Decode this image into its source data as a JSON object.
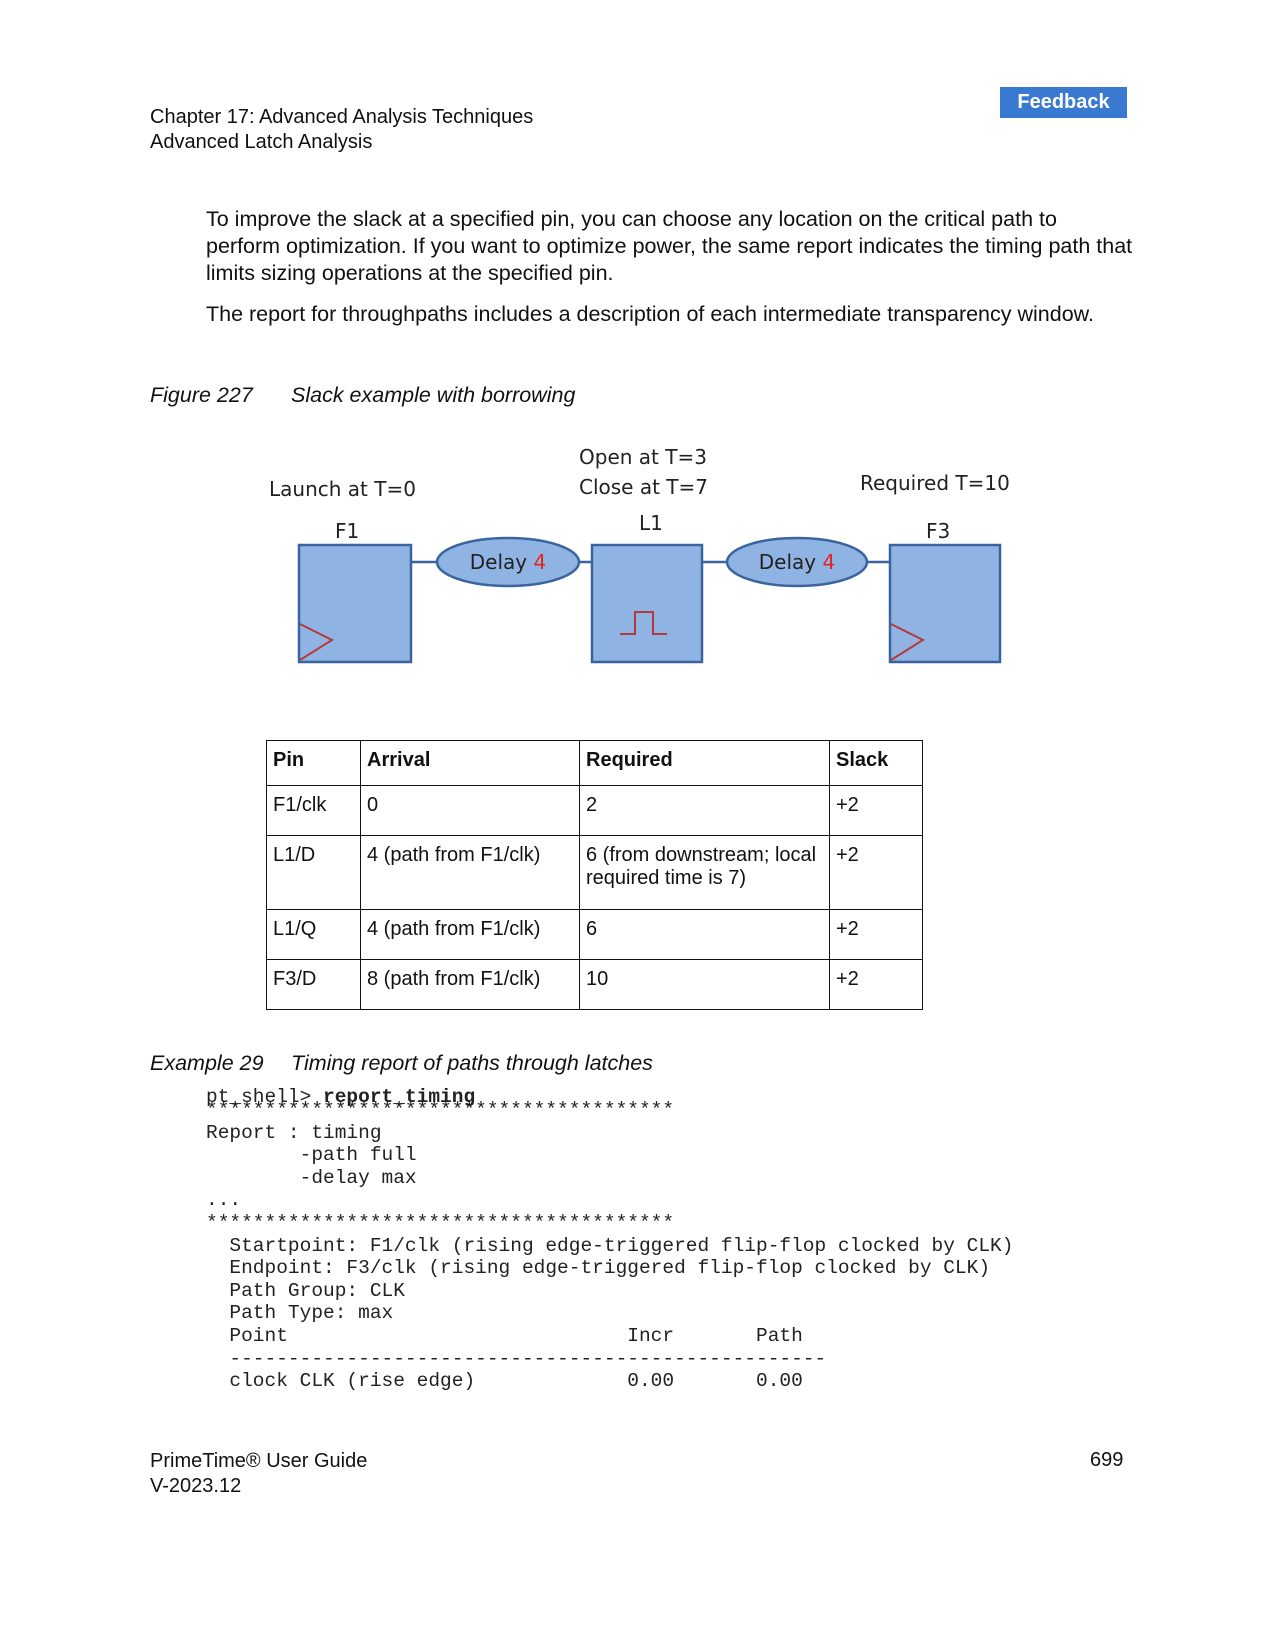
{
  "header": {
    "feedback_label": "Feedback",
    "chapter": "Chapter 17: Advanced Analysis Techniques",
    "section": "Advanced Latch Analysis"
  },
  "paragraphs": [
    "To improve the slack at a specified pin, you can choose any location on the critical path to perform optimization. If you want to optimize power, the same report indicates the timing path that limits sizing operations at the specified pin.",
    "The report for throughpaths includes a description of each intermediate transparency window."
  ],
  "figure": {
    "number": "Figure 227",
    "title": "Slack example with borrowing",
    "launch_label": "Launch at T=0",
    "open_label": "Open at T=3",
    "close_label": "Close at T=7",
    "required_label": "Required T=10",
    "blocks": [
      "F1",
      "L1",
      "F3"
    ],
    "delay_text": "Delay",
    "delay_value_1": "4",
    "delay_value_2": "4",
    "colors": {
      "block_fill": "#8fb4e3",
      "block_stroke": "#3a64a0",
      "delay_value": "#e3231f",
      "clock_symbol": "#b53a3a"
    }
  },
  "table": {
    "headers": [
      "Pin",
      "Arrival",
      "Required",
      "Slack"
    ],
    "rows": [
      [
        "F1/clk",
        "0",
        "2",
        "+2"
      ],
      [
        "L1/D",
        "4 (path from F1/clk)",
        "6 (from downstream; local required time is 7)",
        "+2"
      ],
      [
        "L1/Q",
        "4 (path from F1/clk)",
        "6",
        "+2"
      ],
      [
        "F3/D",
        "8 (path from F1/clk)",
        "10",
        "+2"
      ]
    ]
  },
  "example": {
    "number": "Example 29",
    "title": "Timing report of paths through latches",
    "prompt": "pt_shell> ",
    "command": "report_timing",
    "lines": [
      "****************************************",
      "Report : timing",
      "        -path full",
      "        -delay max",
      "...",
      "****************************************",
      "  Startpoint: F1/clk (rising edge-triggered flip-flop clocked by CLK)",
      "  Endpoint: F3/clk (rising edge-triggered flip-flop clocked by CLK)",
      "  Path Group: CLK",
      "  Path Type: max",
      "  Point                             Incr       Path",
      "  ---------------------------------------------------",
      "  clock CLK (rise edge)             0.00       0.00"
    ]
  },
  "footer": {
    "product": "PrimeTime® User Guide",
    "version": "V-2023.12",
    "page": "699"
  }
}
